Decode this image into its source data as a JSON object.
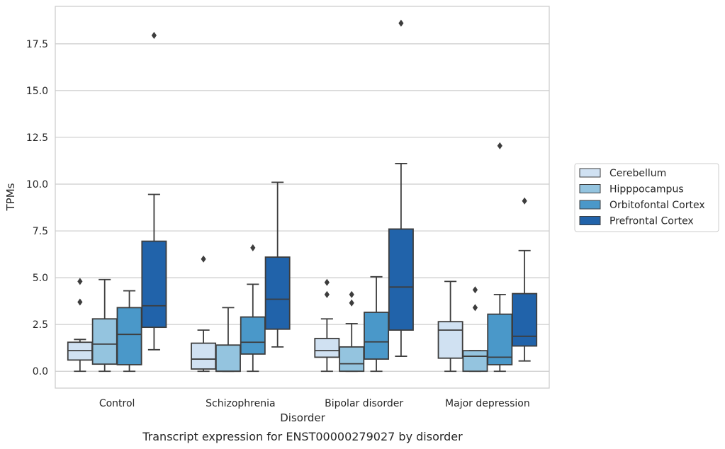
{
  "caption": "Transcript expression for ENST00000279027 by disorder",
  "chart_data": {
    "type": "box",
    "title": "",
    "xlabel": "Disorder",
    "ylabel": "TPMs",
    "ylim": [
      -0.9,
      19.5
    ],
    "yticks": [
      0.0,
      2.5,
      5.0,
      7.5,
      10.0,
      12.5,
      15.0,
      17.5
    ],
    "ytick_labels": [
      "0.0",
      "2.5",
      "5.0",
      "7.5",
      "10.0",
      "12.5",
      "15.0",
      "17.5"
    ],
    "grid": "horizontal",
    "legend_position": "right",
    "categories": [
      "Control",
      "Schizophrenia",
      "Bipolar disorder",
      "Major depression"
    ],
    "series": [
      {
        "name": "Cerebellum",
        "color": "#d0e1f2",
        "boxes": [
          {
            "whislo": 0.0,
            "q1": 0.6,
            "median": 1.1,
            "q3": 1.55,
            "whishi": 1.7,
            "fliers": [
              3.7,
              4.8
            ]
          },
          {
            "whislo": 0.0,
            "q1": 0.12,
            "median": 0.65,
            "q3": 1.5,
            "whishi": 2.2,
            "fliers": [
              6.0
            ]
          },
          {
            "whislo": 0.0,
            "q1": 0.75,
            "median": 1.1,
            "q3": 1.75,
            "whishi": 2.8,
            "fliers": [
              4.1,
              4.75
            ]
          },
          {
            "whislo": 0.0,
            "q1": 0.7,
            "median": 2.2,
            "q3": 2.65,
            "whishi": 4.8,
            "fliers": []
          }
        ]
      },
      {
        "name": "Hipppocampus",
        "color": "#94c4df",
        "boxes": [
          {
            "whislo": 0.0,
            "q1": 0.38,
            "median": 1.45,
            "q3": 2.8,
            "whishi": 4.9,
            "fliers": []
          },
          {
            "whislo": 0.0,
            "q1": 0.0,
            "median": 0.0,
            "q3": 1.4,
            "whishi": 3.4,
            "fliers": []
          },
          {
            "whislo": 0.0,
            "q1": 0.0,
            "median": 0.4,
            "q3": 1.3,
            "whishi": 2.55,
            "fliers": [
              3.65,
              4.1
            ]
          },
          {
            "whislo": 0.0,
            "q1": 0.0,
            "median": 0.8,
            "q3": 1.1,
            "whishi": 1.1,
            "fliers": [
              3.4,
              4.35
            ]
          }
        ]
      },
      {
        "name": "Orbitofontal Cortex",
        "color": "#4a98c9",
        "boxes": [
          {
            "whislo": 0.0,
            "q1": 0.35,
            "median": 1.97,
            "q3": 3.4,
            "whishi": 4.3,
            "fliers": []
          },
          {
            "whislo": 0.0,
            "q1": 0.92,
            "median": 1.55,
            "q3": 2.9,
            "whishi": 4.65,
            "fliers": [
              6.6
            ]
          },
          {
            "whislo": 0.0,
            "q1": 0.65,
            "median": 1.57,
            "q3": 3.15,
            "whishi": 5.05,
            "fliers": []
          },
          {
            "whislo": 0.0,
            "q1": 0.35,
            "median": 0.75,
            "q3": 3.05,
            "whishi": 4.1,
            "fliers": [
              12.05
            ]
          }
        ]
      },
      {
        "name": "Prefrontal Cortex",
        "color": "#2163aa",
        "boxes": [
          {
            "whislo": 1.15,
            "q1": 2.35,
            "median": 3.5,
            "q3": 6.95,
            "whishi": 9.45,
            "fliers": [
              17.95
            ]
          },
          {
            "whislo": 1.3,
            "q1": 2.25,
            "median": 3.85,
            "q3": 6.1,
            "whishi": 10.1,
            "fliers": []
          },
          {
            "whislo": 0.8,
            "q1": 2.2,
            "median": 4.5,
            "q3": 7.6,
            "whishi": 11.1,
            "fliers": [
              18.6
            ]
          },
          {
            "whislo": 0.55,
            "q1": 1.35,
            "median": 1.87,
            "q3": 4.15,
            "whishi": 6.45,
            "fliers": [
              9.1
            ]
          }
        ]
      }
    ]
  }
}
